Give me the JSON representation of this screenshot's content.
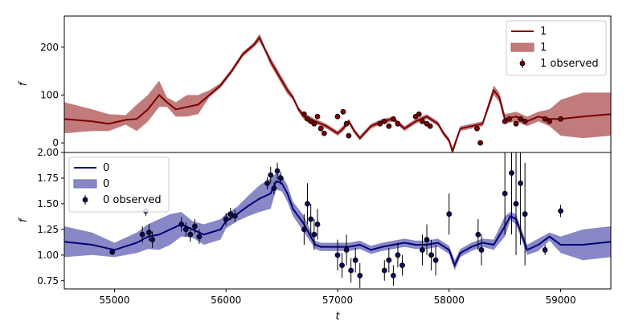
{
  "chart_data": [
    {
      "type": "line",
      "panel": "top",
      "ylabel": "f",
      "xlabel": "",
      "xlim": [
        54550,
        59450
      ],
      "ylim": [
        -20,
        265
      ],
      "yticks": [
        0,
        100,
        200
      ],
      "xticks": [],
      "colors": {
        "line": "#7a0000",
        "band": "#b35a5a",
        "points": "#7a0000"
      },
      "legend": {
        "placement": "top-right",
        "entries": [
          {
            "kind": "line",
            "label": "1"
          },
          {
            "kind": "band",
            "label": "1"
          },
          {
            "kind": "points",
            "label": "1 observed"
          }
        ]
      },
      "series": {
        "x": [
          54550,
          54800,
          54950,
          55100,
          55200,
          55300,
          55400,
          55470,
          55550,
          55650,
          55750,
          55850,
          55950,
          56050,
          56150,
          56250,
          56300,
          56350,
          56400,
          56450,
          56500,
          56550,
          56600,
          56650,
          56700,
          56800,
          56900,
          57000,
          57050,
          57100,
          57150,
          57200,
          57300,
          57400,
          57500,
          57600,
          57700,
          57800,
          57900,
          57950,
          58000,
          58030,
          58100,
          58200,
          58300,
          58400,
          58450,
          58500,
          58600,
          58700,
          58800,
          58900,
          59000,
          59200,
          59450
        ],
        "y": [
          50,
          45,
          40,
          48,
          50,
          70,
          100,
          85,
          70,
          75,
          80,
          100,
          120,
          150,
          185,
          205,
          220,
          195,
          170,
          150,
          130,
          110,
          95,
          70,
          55,
          45,
          35,
          20,
          30,
          45,
          25,
          10,
          35,
          45,
          50,
          30,
          45,
          55,
          40,
          20,
          5,
          -18,
          30,
          35,
          40,
          110,
          95,
          50,
          55,
          45,
          55,
          50,
          50,
          55,
          60
        ],
        "upper": [
          85,
          70,
          60,
          58,
          80,
          100,
          130,
          95,
          85,
          100,
          100,
          110,
          125,
          155,
          190,
          210,
          228,
          200,
          178,
          158,
          138,
          118,
          100,
          75,
          62,
          50,
          40,
          25,
          36,
          50,
          30,
          15,
          40,
          50,
          55,
          35,
          50,
          60,
          45,
          25,
          10,
          -10,
          35,
          40,
          45,
          120,
          105,
          60,
          65,
          55,
          65,
          70,
          90,
          105,
          105
        ],
        "lower": [
          20,
          25,
          25,
          38,
          25,
          45,
          75,
          75,
          55,
          55,
          60,
          95,
          115,
          145,
          180,
          200,
          212,
          190,
          162,
          142,
          122,
          102,
          90,
          65,
          48,
          40,
          30,
          15,
          24,
          40,
          20,
          5,
          30,
          40,
          45,
          25,
          40,
          50,
          35,
          15,
          0,
          -25,
          25,
          30,
          35,
          100,
          85,
          40,
          45,
          35,
          45,
          35,
          15,
          10,
          15
        ]
      },
      "observed": {
        "x": [
          56700,
          56730,
          56760,
          56790,
          56820,
          56850,
          56880,
          57000,
          57050,
          57080,
          57100,
          57380,
          57420,
          57460,
          57500,
          57540,
          57700,
          57730,
          57760,
          57800,
          57830,
          58250,
          58280,
          58500,
          58540,
          58600,
          58640,
          58680,
          58860,
          58900,
          59000
        ],
        "y": [
          60,
          50,
          45,
          40,
          55,
          30,
          20,
          55,
          65,
          40,
          15,
          40,
          45,
          35,
          50,
          40,
          55,
          60,
          45,
          40,
          35,
          30,
          0,
          45,
          50,
          40,
          50,
          45,
          50,
          45,
          50
        ],
        "yerr": [
          5,
          5,
          5,
          5,
          5,
          5,
          5,
          5,
          5,
          5,
          5,
          5,
          5,
          5,
          5,
          5,
          5,
          5,
          5,
          5,
          5,
          5,
          5,
          5,
          5,
          5,
          5,
          5,
          5,
          5,
          5
        ]
      }
    },
    {
      "type": "line",
      "panel": "bottom",
      "ylabel": "f",
      "xlabel": "t",
      "xlim": [
        54550,
        59450
      ],
      "ylim": [
        0.67,
        2.0
      ],
      "yticks": [
        0.75,
        1.0,
        1.25,
        1.5,
        1.75,
        2.0
      ],
      "ytick_labels": [
        "0.75",
        "1.00",
        "1.25",
        "1.50",
        "1.75",
        "2.00"
      ],
      "xticks": [
        55000,
        56000,
        57000,
        58000,
        59000
      ],
      "xtick_labels": [
        "55000",
        "56000",
        "57000",
        "58000",
        "59000"
      ],
      "colors": {
        "line": "#00007a",
        "band": "#6a6ab8",
        "points": "#0a0a5a"
      },
      "legend": {
        "placement": "top-left",
        "entries": [
          {
            "kind": "line",
            "label": "0"
          },
          {
            "kind": "band",
            "label": "0"
          },
          {
            "kind": "points",
            "label": "0 observed"
          }
        ]
      },
      "series": {
        "x": [
          54550,
          54800,
          55000,
          55200,
          55300,
          55400,
          55500,
          55600,
          55700,
          55800,
          55950,
          56000,
          56100,
          56200,
          56300,
          56400,
          56450,
          56500,
          56550,
          56600,
          56700,
          56800,
          56850,
          56900,
          57000,
          57100,
          57200,
          57300,
          57400,
          57500,
          57600,
          57700,
          57800,
          57900,
          58000,
          58050,
          58100,
          58200,
          58300,
          58400,
          58500,
          58550,
          58600,
          58650,
          58700,
          58800,
          58900,
          59000,
          59200,
          59450
        ],
        "y": [
          1.13,
          1.1,
          1.05,
          1.12,
          1.18,
          1.2,
          1.25,
          1.3,
          1.25,
          1.2,
          1.25,
          1.33,
          1.4,
          1.48,
          1.55,
          1.6,
          1.72,
          1.7,
          1.6,
          1.45,
          1.3,
          1.1,
          1.08,
          1.08,
          1.08,
          1.08,
          1.1,
          1.05,
          1.08,
          1.1,
          1.12,
          1.1,
          1.1,
          1.12,
          1.05,
          0.9,
          1.02,
          1.08,
          1.12,
          1.1,
          1.28,
          1.38,
          1.35,
          1.2,
          1.05,
          1.1,
          1.18,
          1.1,
          1.1,
          1.13
        ],
        "upper": [
          1.28,
          1.22,
          1.12,
          1.22,
          1.3,
          1.35,
          1.4,
          1.42,
          1.33,
          1.3,
          1.35,
          1.4,
          1.47,
          1.58,
          1.68,
          1.75,
          1.8,
          1.78,
          1.68,
          1.52,
          1.38,
          1.14,
          1.12,
          1.12,
          1.12,
          1.12,
          1.14,
          1.09,
          1.12,
          1.14,
          1.16,
          1.14,
          1.14,
          1.16,
          1.09,
          0.95,
          1.06,
          1.12,
          1.16,
          1.15,
          1.38,
          1.42,
          1.4,
          1.25,
          1.1,
          1.16,
          1.22,
          1.18,
          1.25,
          1.28
        ],
        "lower": [
          0.98,
          1.0,
          0.98,
          1.02,
          1.06,
          1.05,
          1.1,
          1.18,
          1.17,
          1.1,
          1.15,
          1.26,
          1.33,
          1.38,
          1.42,
          1.45,
          1.64,
          1.62,
          1.52,
          1.38,
          1.22,
          1.06,
          1.04,
          1.04,
          1.04,
          1.04,
          1.06,
          1.01,
          1.04,
          1.06,
          1.08,
          1.06,
          1.06,
          1.08,
          1.01,
          0.85,
          0.98,
          1.04,
          1.08,
          1.05,
          1.18,
          1.34,
          1.3,
          1.15,
          1.0,
          1.04,
          1.14,
          1.02,
          0.95,
          0.98
        ]
      },
      "observed": {
        "x": [
          54980,
          55250,
          55280,
          55310,
          55340,
          55600,
          55640,
          55680,
          55720,
          55760,
          56000,
          56040,
          56080,
          56370,
          56400,
          56430,
          56460,
          56490,
          56700,
          56730,
          56760,
          56790,
          56820,
          57000,
          57040,
          57080,
          57120,
          57160,
          57200,
          57420,
          57460,
          57500,
          57540,
          57580,
          57760,
          57800,
          57840,
          57880,
          58000,
          58260,
          58290,
          58500,
          58560,
          58600,
          58640,
          58680,
          58860,
          59000
        ],
        "y": [
          1.03,
          1.2,
          1.43,
          1.22,
          1.15,
          1.3,
          1.25,
          1.2,
          1.28,
          1.18,
          1.35,
          1.4,
          1.38,
          1.7,
          1.78,
          1.65,
          1.82,
          1.75,
          1.25,
          1.5,
          1.35,
          1.2,
          1.3,
          1.0,
          0.9,
          1.05,
          0.85,
          0.95,
          0.8,
          0.85,
          0.95,
          0.8,
          1.0,
          0.9,
          1.05,
          1.15,
          1.0,
          0.95,
          1.4,
          1.2,
          1.05,
          1.6,
          1.8,
          1.5,
          1.7,
          1.4,
          1.05,
          1.43
        ],
        "yerr": [
          0.03,
          0.08,
          0.05,
          0.08,
          0.08,
          0.07,
          0.07,
          0.07,
          0.07,
          0.07,
          0.06,
          0.06,
          0.06,
          0.06,
          0.08,
          0.06,
          0.08,
          0.06,
          0.15,
          0.2,
          0.15,
          0.15,
          0.15,
          0.15,
          0.12,
          0.15,
          0.12,
          0.12,
          0.12,
          0.1,
          0.12,
          0.1,
          0.12,
          0.1,
          0.15,
          0.15,
          0.15,
          0.15,
          0.2,
          0.15,
          0.15,
          0.4,
          0.6,
          0.5,
          0.6,
          0.5,
          0.05,
          0.06
        ]
      }
    }
  ]
}
